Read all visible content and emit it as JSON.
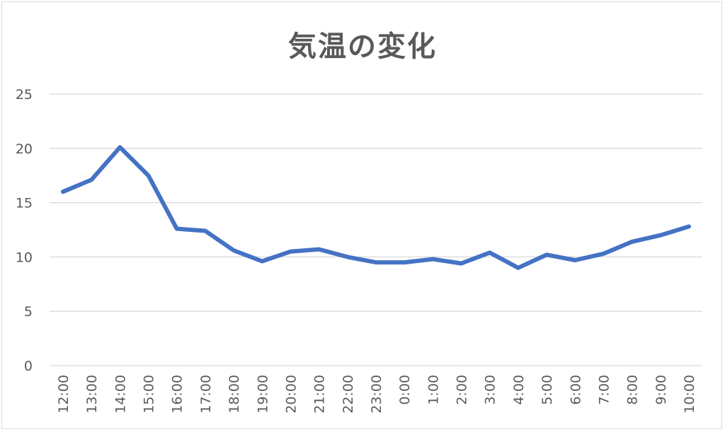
{
  "chart_data": {
    "type": "line",
    "title": "気温の変化",
    "xlabel": "",
    "ylabel": "",
    "ylim": [
      0,
      25
    ],
    "yticks": [
      0,
      5,
      10,
      15,
      20,
      25
    ],
    "grid": true,
    "legend": "none",
    "categories": [
      "12:00",
      "13:00",
      "14:00",
      "15:00",
      "16:00",
      "17:00",
      "18:00",
      "19:00",
      "20:00",
      "21:00",
      "22:00",
      "23:00",
      "0:00",
      "1:00",
      "2:00",
      "3:00",
      "4:00",
      "5:00",
      "6:00",
      "7:00",
      "8:00",
      "9:00",
      "10:00"
    ],
    "series": [
      {
        "values": [
          16.0,
          17.1,
          20.1,
          17.5,
          12.6,
          12.4,
          10.6,
          9.6,
          10.5,
          10.7,
          10.0,
          9.5,
          9.5,
          9.8,
          9.4,
          10.4,
          9.0,
          10.2,
          9.7,
          10.3,
          11.4,
          12.0,
          12.8
        ],
        "color": "#4472c4"
      }
    ],
    "colors": {
      "line": "#4472c4",
      "grid": "#d9d9d9",
      "text": "#595959"
    }
  }
}
